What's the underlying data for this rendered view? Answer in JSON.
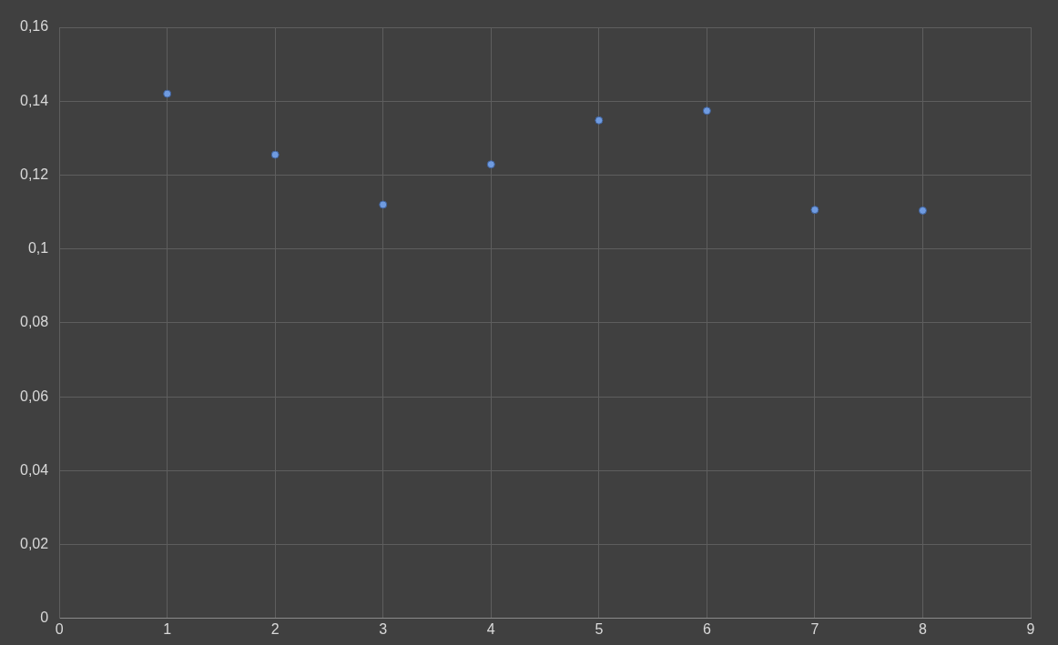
{
  "chart_data": {
    "type": "scatter",
    "x": [
      1,
      2,
      3,
      4,
      5,
      6,
      7,
      8
    ],
    "series": [
      {
        "color": "#6f9be0",
        "values": [
          0.142,
          0.1255,
          0.112,
          0.1229,
          0.1348,
          0.1374,
          0.1106,
          0.1104
        ]
      }
    ],
    "xlim": [
      0,
      9
    ],
    "xticks": [
      0,
      1,
      2,
      3,
      4,
      5,
      6,
      7,
      8,
      9
    ],
    "ylim": [
      0,
      0.16
    ],
    "yticks": [
      0,
      {
        "value": 0.02,
        "label": "0,02"
      },
      {
        "value": 0.04,
        "label": "0,04"
      },
      {
        "value": 0.06,
        "label": "0,06"
      },
      {
        "value": 0.08,
        "label": "0,08"
      },
      {
        "value": 0.1,
        "label": "0,1"
      },
      {
        "value": 0.12,
        "label": "0,12"
      },
      {
        "value": 0.14,
        "label": "0,14"
      },
      {
        "value": 0.16,
        "label": "0,16"
      }
    ],
    "grid": true,
    "marker": "circle",
    "legend": false
  }
}
